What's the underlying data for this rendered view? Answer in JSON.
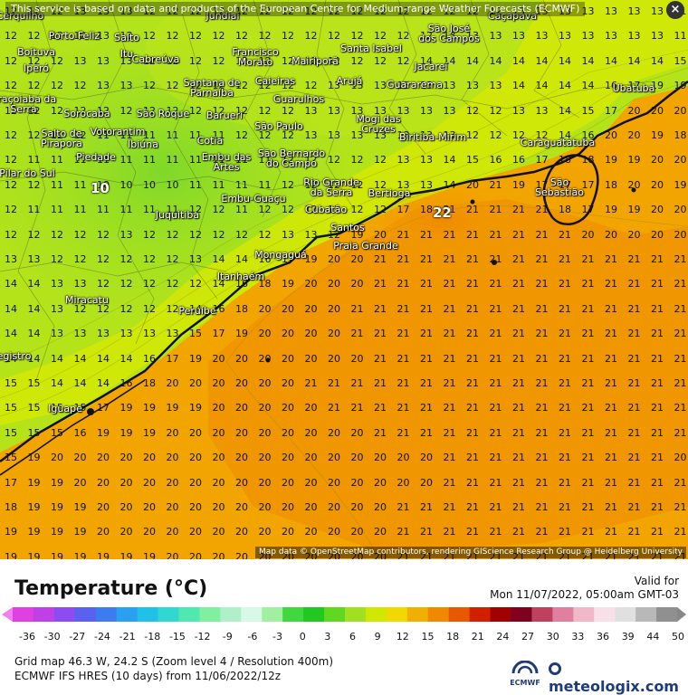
{
  "notice": "This service is based on data and products of the European Centre for Medium-range Weather Forecasts (ECMWF)",
  "close_label": "×",
  "attribution": "Map data © OpenStreetMap contributors, rendering GIScience Research Group @ Heidelberg University",
  "legend": {
    "title": "Temperature (°C)",
    "valid_label": "Valid for",
    "valid_date": "Mon 11/07/2022, 05:00am GMT-03",
    "ticks": [
      "-36",
      "-30",
      "-27",
      "-24",
      "-21",
      "-18",
      "-15",
      "-12",
      "-9",
      "-6",
      "-3",
      "0",
      "3",
      "6",
      "9",
      "12",
      "15",
      "18",
      "21",
      "24",
      "27",
      "30",
      "33",
      "36",
      "39",
      "44",
      "50"
    ]
  },
  "info": {
    "grid": "Grid map 46.3 W, 24.2 S (Zoom level 4 / Resolution 400m)",
    "model": "ECMWF IFS HRES (10 days) from 11/06/2022/12z"
  },
  "logos": {
    "ecmwf": "ECMWF",
    "brand": "meteologix.com"
  },
  "highlights": {
    "min": "10",
    "max": "22"
  },
  "cities": [
    "Cerquilho",
    "Porto Feliz",
    "Salto",
    "Itu",
    "Cabreúva",
    "Jundiaí",
    "Francisco Morato",
    "Mairiporã",
    "Santa Isabel",
    "Jacareí",
    "São José dos Campos",
    "Caçapava",
    "Boituva",
    "Iperó",
    "Santana de Parnaíba",
    "Caieiras",
    "Arujá",
    "Guararema",
    "Guarulhos",
    "Ubatuba",
    "Araçoiaba da Serra",
    "Sorocaba",
    "São Roque",
    "Barueri",
    "São Paulo",
    "Mogi das Cruzes",
    "Salto de Pirapora",
    "Votorantim",
    "Ibiúna",
    "Cotia",
    "Embu das Artes",
    "São Bernardo do Campo",
    "Biritiba-Mirim",
    "Caraguatatuba",
    "Piedade",
    "Pilar do Sul",
    "Rio Grande da Serra",
    "Bertioga",
    "São Sebastião",
    "Embu-Guaçu",
    "Juquitiba",
    "Cubatão",
    "Santos",
    "Praia Grande",
    "Mongaguá",
    "Itanhaém",
    "Miracatu",
    "Peruíbe",
    "Registro",
    "Iguape"
  ],
  "temperature_grid": [
    [
      12,
      12,
      12,
      13,
      13,
      13,
      12,
      12,
      12,
      12,
      12,
      12,
      12,
      12,
      12,
      12,
      12,
      12,
      12,
      12,
      12,
      12,
      13,
      13,
      13,
      13,
      13,
      13,
      13,
      11
    ],
    [
      12,
      12,
      12,
      12,
      13,
      13,
      12,
      12,
      12,
      12,
      12,
      12,
      12,
      12,
      12,
      12,
      12,
      12,
      12,
      13,
      13,
      13,
      13,
      13,
      13,
      13,
      13,
      13,
      13,
      11
    ],
    [
      12,
      12,
      12,
      13,
      13,
      13,
      12,
      12,
      12,
      12,
      12,
      12,
      12,
      12,
      12,
      12,
      12,
      12,
      14,
      14,
      14,
      14,
      14,
      14,
      14,
      14,
      14,
      14,
      14,
      15
    ],
    [
      12,
      12,
      12,
      12,
      13,
      13,
      12,
      12,
      12,
      12,
      12,
      12,
      12,
      12,
      13,
      13,
      13,
      13,
      13,
      13,
      13,
      13,
      14,
      14,
      14,
      14,
      16,
      17,
      19,
      19
    ],
    [
      12,
      12,
      12,
      12,
      12,
      12,
      12,
      12,
      12,
      12,
      12,
      12,
      12,
      13,
      13,
      13,
      13,
      13,
      13,
      13,
      12,
      12,
      13,
      13,
      14,
      15,
      17,
      20,
      20,
      20
    ],
    [
      12,
      12,
      12,
      12,
      11,
      11,
      11,
      11,
      11,
      11,
      12,
      12,
      12,
      13,
      13,
      13,
      13,
      13,
      13,
      13,
      12,
      12,
      12,
      12,
      14,
      16,
      20,
      20,
      19,
      18
    ],
    [
      12,
      11,
      11,
      11,
      11,
      11,
      11,
      11,
      11,
      11,
      11,
      11,
      12,
      12,
      12,
      12,
      12,
      13,
      13,
      14,
      15,
      16,
      16,
      17,
      18,
      18,
      19,
      19,
      20,
      20
    ],
    [
      12,
      12,
      11,
      11,
      10,
      10,
      10,
      10,
      11,
      11,
      11,
      11,
      12,
      12,
      12,
      12,
      12,
      13,
      13,
      14,
      20,
      21,
      19,
      17,
      17,
      17,
      18,
      20,
      20,
      19
    ],
    [
      12,
      11,
      11,
      11,
      11,
      11,
      11,
      11,
      12,
      12,
      11,
      12,
      12,
      12,
      12,
      12,
      12,
      17,
      18,
      21,
      21,
      21,
      21,
      21,
      18,
      17,
      19,
      19,
      20,
      20
    ],
    [
      12,
      12,
      12,
      12,
      12,
      13,
      12,
      12,
      12,
      12,
      12,
      12,
      13,
      13,
      12,
      19,
      20,
      21,
      21,
      21,
      21,
      21,
      21,
      21,
      21,
      20,
      20,
      20,
      20,
      20
    ],
    [
      13,
      13,
      12,
      12,
      12,
      12,
      12,
      12,
      13,
      14,
      14,
      16,
      17,
      19,
      20,
      20,
      21,
      21,
      21,
      21,
      21,
      21,
      21,
      21,
      21,
      21,
      21,
      21,
      21,
      21
    ],
    [
      14,
      14,
      13,
      13,
      12,
      12,
      12,
      12,
      12,
      14,
      16,
      18,
      19,
      20,
      20,
      20,
      21,
      21,
      21,
      21,
      21,
      21,
      21,
      21,
      21,
      21,
      21,
      21,
      21,
      21
    ],
    [
      14,
      14,
      13,
      12,
      12,
      12,
      12,
      12,
      14,
      16,
      18,
      20,
      20,
      20,
      20,
      21,
      21,
      21,
      21,
      21,
      21,
      21,
      21,
      21,
      21,
      21,
      21,
      21,
      21,
      21
    ],
    [
      14,
      14,
      13,
      13,
      13,
      13,
      13,
      13,
      15,
      17,
      19,
      20,
      20,
      20,
      20,
      21,
      21,
      21,
      21,
      21,
      21,
      21,
      21,
      21,
      21,
      21,
      21,
      21,
      21,
      21
    ],
    [
      14,
      14,
      14,
      14,
      14,
      14,
      16,
      17,
      19,
      20,
      20,
      20,
      20,
      20,
      20,
      20,
      21,
      21,
      21,
      21,
      21,
      21,
      21,
      21,
      21,
      21,
      21,
      21,
      21,
      21
    ],
    [
      15,
      15,
      14,
      14,
      14,
      16,
      18,
      20,
      20,
      20,
      20,
      20,
      20,
      21,
      21,
      21,
      21,
      21,
      21,
      21,
      21,
      21,
      21,
      21,
      21,
      21,
      21,
      21,
      21,
      21
    ],
    [
      15,
      15,
      15,
      15,
      17,
      19,
      19,
      19,
      19,
      20,
      20,
      20,
      20,
      20,
      21,
      21,
      21,
      21,
      21,
      21,
      21,
      21,
      21,
      21,
      21,
      21,
      21,
      21,
      21,
      21
    ],
    [
      15,
      15,
      15,
      16,
      19,
      19,
      19,
      20,
      20,
      20,
      20,
      20,
      20,
      20,
      20,
      20,
      21,
      21,
      21,
      21,
      21,
      21,
      21,
      21,
      21,
      21,
      21,
      21,
      21,
      21
    ],
    [
      15,
      19,
      20,
      20,
      20,
      20,
      20,
      20,
      20,
      20,
      20,
      20,
      20,
      20,
      20,
      20,
      20,
      20,
      20,
      21,
      21,
      21,
      21,
      21,
      21,
      21,
      21,
      21,
      21,
      20
    ],
    [
      17,
      19,
      19,
      20,
      20,
      20,
      20,
      20,
      20,
      20,
      20,
      20,
      20,
      20,
      20,
      20,
      20,
      20,
      20,
      21,
      21,
      21,
      21,
      21,
      21,
      21,
      21,
      21,
      21,
      21
    ],
    [
      18,
      19,
      19,
      19,
      20,
      20,
      20,
      20,
      20,
      20,
      20,
      20,
      20,
      20,
      20,
      20,
      20,
      21,
      21,
      21,
      21,
      21,
      21,
      21,
      21,
      21,
      21,
      21,
      21,
      21
    ],
    [
      19,
      19,
      19,
      19,
      20,
      20,
      20,
      20,
      20,
      20,
      20,
      20,
      20,
      20,
      20,
      20,
      20,
      21,
      21,
      21,
      21,
      21,
      21,
      21,
      21,
      21,
      21,
      21,
      21,
      21
    ],
    [
      19,
      19,
      19,
      19,
      19,
      19,
      19,
      20,
      20,
      20,
      20,
      20,
      20,
      20,
      20,
      20,
      20,
      21,
      21,
      21,
      21,
      21,
      21,
      21,
      21,
      21,
      21,
      21,
      21,
      21
    ]
  ],
  "colors": {
    "cold": "#9be12a",
    "mid": "#c8e600",
    "warm": "#f0a800",
    "hot": "#ee8c00",
    "coast": "#111111"
  }
}
